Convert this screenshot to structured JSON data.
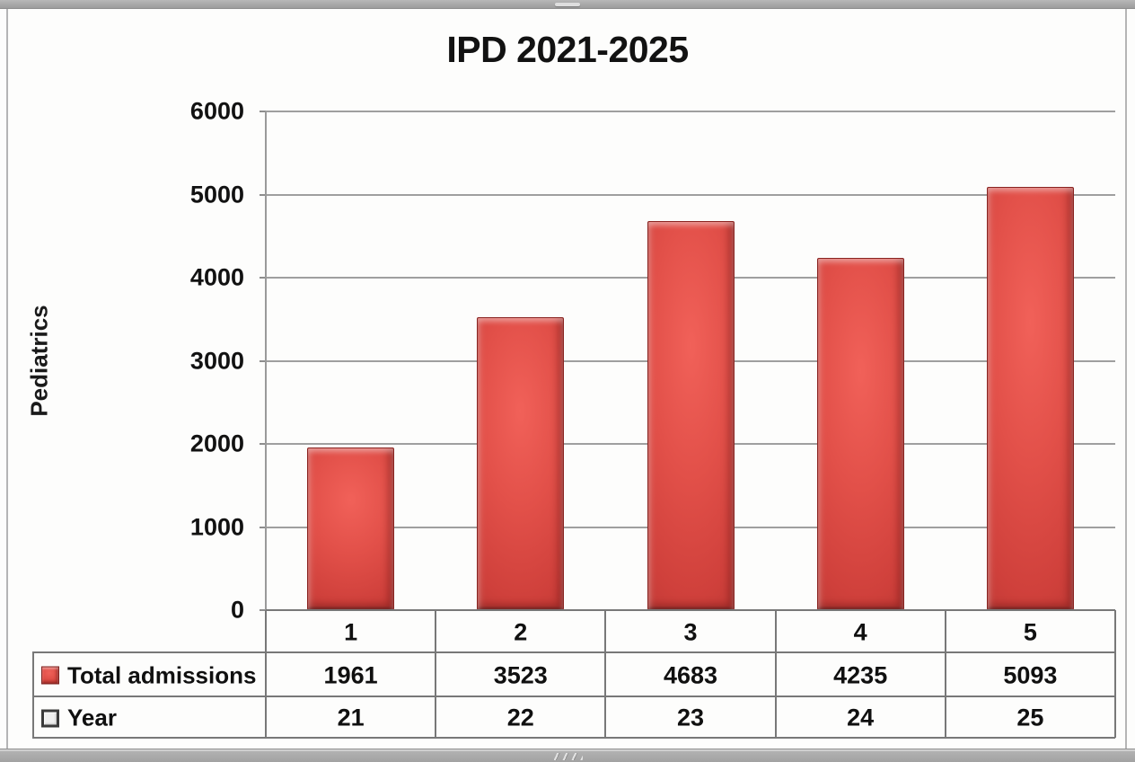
{
  "title": "IPD 2021-2025",
  "y_axis_label": "Pediatrics",
  "chart_data": {
    "type": "bar",
    "title": "IPD 2021-2025",
    "ylabel": "Pediatrics",
    "categories": [
      "1",
      "2",
      "3",
      "4",
      "5"
    ],
    "series": [
      {
        "name": "Total admissions",
        "values": [
          1961,
          3523,
          4683,
          4235,
          5093
        ]
      }
    ],
    "secondary_row": {
      "name": "Year",
      "values": [
        "21",
        "22",
        "23",
        "24",
        "25"
      ]
    },
    "ylim": [
      0,
      6000
    ],
    "yticks": [
      0,
      1000,
      2000,
      3000,
      4000,
      5000,
      6000
    ],
    "grid": true,
    "legend_position": "data-table-left",
    "bar_color": "#cf403b"
  },
  "table": {
    "column_headers": [
      "1",
      "2",
      "3",
      "4",
      "5"
    ],
    "rows": [
      {
        "label": "Total admissions",
        "icon": "red-square-legend-icon",
        "values": [
          "1961",
          "3523",
          "4683",
          "4235",
          "5093"
        ]
      },
      {
        "label": "Year",
        "icon": "white-square-legend-icon",
        "values": [
          "21",
          "22",
          "23",
          "24",
          "25"
        ]
      }
    ]
  }
}
